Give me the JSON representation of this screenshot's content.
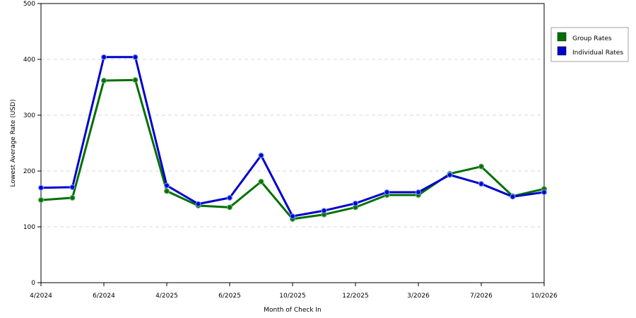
{
  "chart_data": {
    "type": "line",
    "title": "",
    "xlabel": "Month of Check In",
    "ylabel": "Lowest Average Rate (USD)",
    "ylim": [
      0,
      500
    ],
    "yticks": [
      0,
      100,
      200,
      300,
      400,
      500
    ],
    "grid": "horizontal dashed",
    "legend_position": "right",
    "x_tick_labels": [
      "4/2024",
      "6/2024",
      "4/2025",
      "6/2025",
      "10/2025",
      "12/2025",
      "3/2026",
      "7/2026",
      "10/2026"
    ],
    "x_tick_positions": [
      0,
      2,
      4,
      6,
      8,
      10,
      12,
      14,
      16
    ],
    "series": [
      {
        "name": "Group Rates",
        "color": "#007000",
        "values": [
          148,
          152,
          362,
          363,
          164,
          138,
          135,
          181,
          114,
          122,
          135,
          157,
          157,
          195,
          208,
          155,
          168
        ]
      },
      {
        "name": "Individual Rates",
        "color": "#0000cc",
        "values": [
          170,
          171,
          404,
          404,
          174,
          141,
          152,
          228,
          119,
          129,
          142,
          162,
          162,
          193,
          177,
          154,
          162
        ]
      }
    ]
  }
}
